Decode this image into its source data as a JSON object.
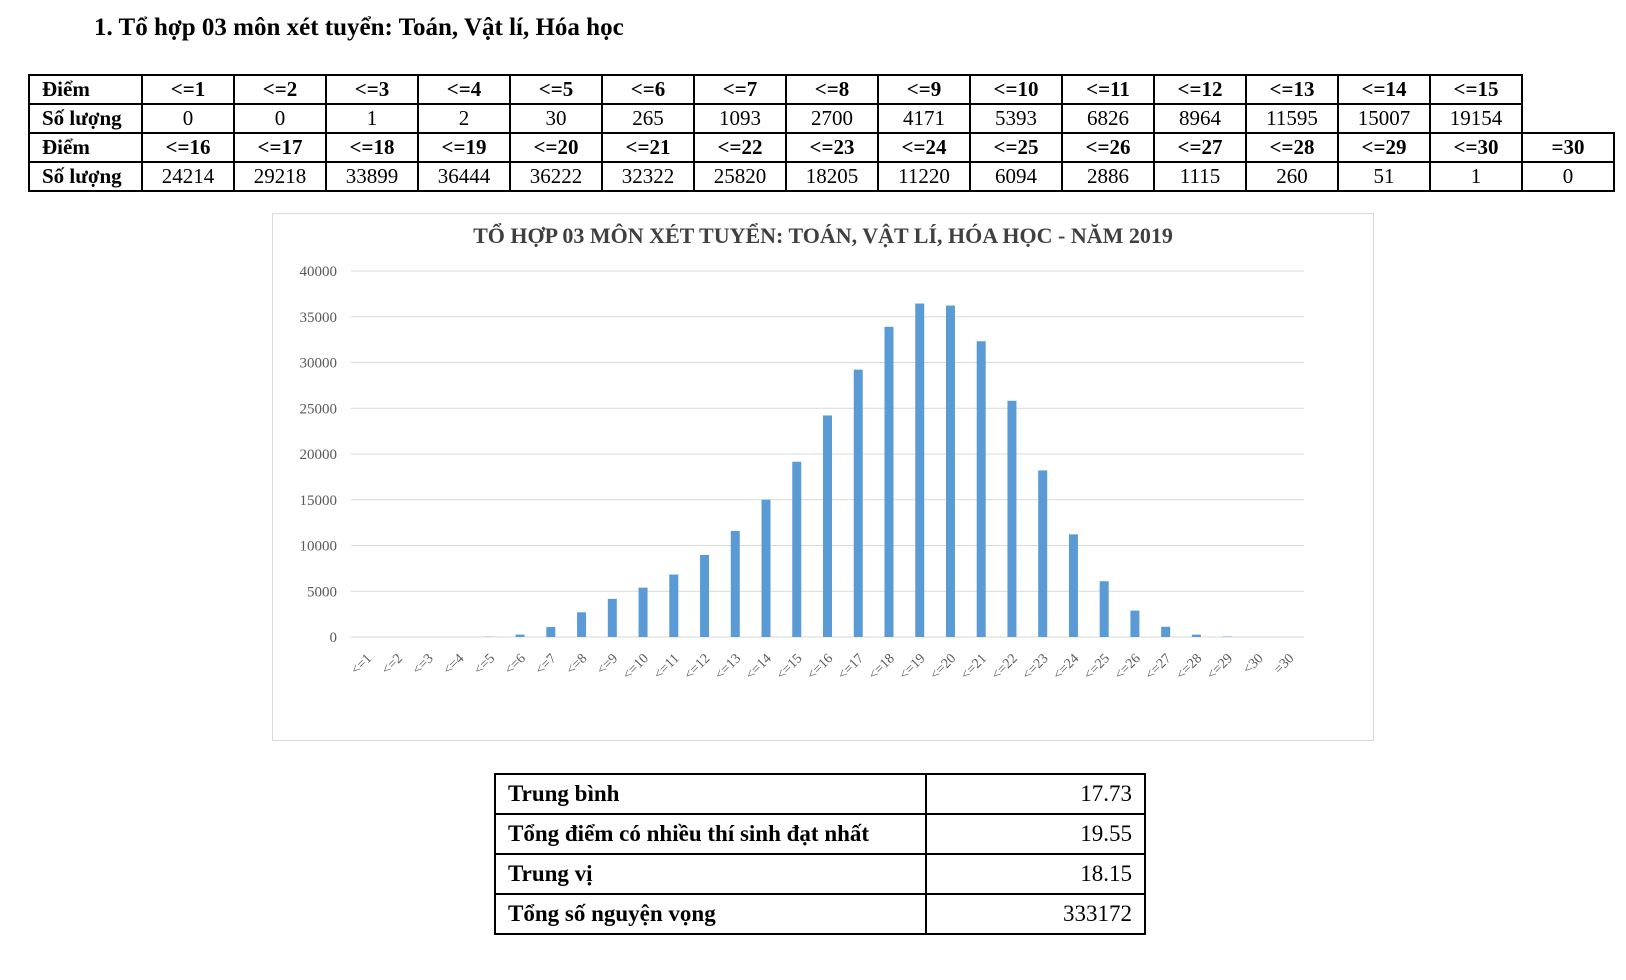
{
  "heading": "1. Tổ hợp 03 môn xét tuyển: Toán, Vật lí, Hóa học",
  "table": {
    "row_label_score": "Điểm",
    "row_label_count": "Số lượng",
    "row1": {
      "scores": [
        "<=1",
        "<=2",
        "<=3",
        "<=4",
        "<=5",
        "<=6",
        "<=7",
        "<=8",
        "<=9",
        "<=10",
        "<=11",
        "<=12",
        "<=13",
        "<=14",
        "<=15"
      ],
      "counts": [
        "0",
        "0",
        "1",
        "2",
        "30",
        "265",
        "1093",
        "2700",
        "4171",
        "5393",
        "6826",
        "8964",
        "11595",
        "15007",
        "19154"
      ]
    },
    "row2": {
      "scores": [
        "<=16",
        "<=17",
        "<=18",
        "<=19",
        "<=20",
        "<=21",
        "<=22",
        "<=23",
        "<=24",
        "<=25",
        "<=26",
        "<=27",
        "<=28",
        "<=29",
        "<=30",
        "=30"
      ],
      "counts": [
        "24214",
        "29218",
        "33899",
        "36444",
        "36222",
        "32322",
        "25820",
        "18205",
        "11220",
        "6094",
        "2886",
        "1115",
        "260",
        "51",
        "1",
        "0"
      ]
    }
  },
  "chart_data": {
    "type": "bar",
    "title": "TỔ HỢP 03 MÔN XÉT TUYỂN: TOÁN, VẬT LÍ, HÓA HỌC - NĂM 2019",
    "categories": [
      "<=1",
      "<=2",
      "<=3",
      "<=4",
      "<=5",
      "<=6",
      "<=7",
      "<=8",
      "<=9",
      "<=10",
      "<=11",
      "<=12",
      "<=13",
      "<=14",
      "<=15",
      "<=16",
      "<=17",
      "<=18",
      "<=19",
      "<=20",
      "<=21",
      "<=22",
      "<=23",
      "<=24",
      "<=25",
      "<=26",
      "<=27",
      "<=28",
      "<=29",
      "<30",
      "=30"
    ],
    "values": [
      0,
      0,
      1,
      2,
      30,
      265,
      1093,
      2700,
      4171,
      5393,
      6826,
      8964,
      11595,
      15007,
      19154,
      24214,
      29218,
      33899,
      36444,
      36222,
      32322,
      25820,
      18205,
      11220,
      6094,
      2886,
      1115,
      260,
      51,
      1,
      0
    ],
    "ylim": [
      0,
      40000
    ],
    "yticks": [
      0,
      5000,
      10000,
      15000,
      20000,
      25000,
      30000,
      35000,
      40000
    ],
    "grid": true,
    "legend": "none",
    "bar_color": "#5b9bd5",
    "grid_color": "#d9d9d9",
    "xlabel": "",
    "ylabel": ""
  },
  "stats": [
    {
      "label": "Trung bình",
      "value": "17.73"
    },
    {
      "label": "Tổng điểm có nhiều thí sinh đạt nhất",
      "value": "19.55"
    },
    {
      "label": "Trung vị",
      "value": "18.15"
    },
    {
      "label": "Tổng số nguyện vọng",
      "value": "333172"
    }
  ]
}
